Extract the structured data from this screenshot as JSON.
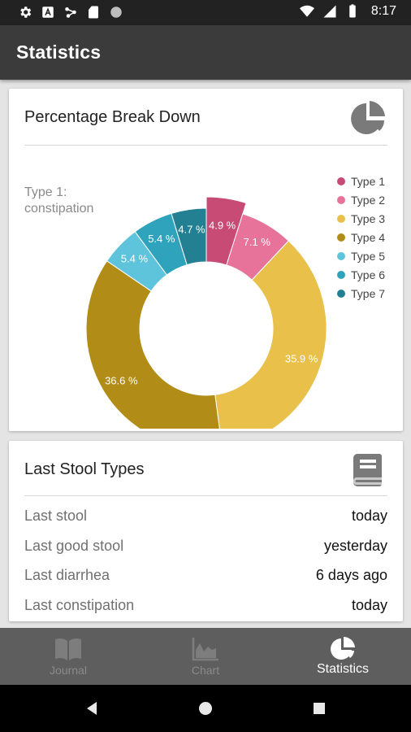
{
  "status_bar": {
    "time": "8:17",
    "left_icons": [
      "gear-icon",
      "notification-icon",
      "share-icon",
      "sd-card-icon",
      "record-icon"
    ],
    "right_icons": [
      "wifi-icon",
      "signal-icon",
      "battery-icon"
    ]
  },
  "app_bar": {
    "title": "Statistics"
  },
  "breakdown_card": {
    "title": "Percentage Break Down",
    "icon": "pie-chart-icon",
    "center_label_line1": "Type 1:",
    "center_label_line2": "constipation"
  },
  "chart_data": {
    "type": "pie",
    "categories": [
      "Type 1",
      "Type 2",
      "Type 3",
      "Type 4",
      "Type 5",
      "Type 6",
      "Type 7"
    ],
    "values": [
      4.9,
      7.1,
      35.9,
      36.6,
      5.4,
      5.4,
      4.7
    ],
    "labels": [
      "4.9 %",
      "7.1 %",
      "35.9 %",
      "36.6 %",
      "5.4 %",
      "5.4 %",
      "4.7 %"
    ],
    "colors": [
      "#c84b76",
      "#e8739a",
      "#e8c04a",
      "#b18d18",
      "#5ec4dc",
      "#2fa3bb",
      "#238093"
    ],
    "highlighted": "Type 1",
    "donut": true,
    "legend_position": "right"
  },
  "stool_card": {
    "title": "Last Stool Types",
    "icon": "book-icon",
    "rows": [
      {
        "label": "Last stool",
        "value": "today"
      },
      {
        "label": "Last good stool",
        "value": "yesterday"
      },
      {
        "label": "Last diarrhea",
        "value": "6 days ago"
      },
      {
        "label": "Last constipation",
        "value": "today"
      }
    ]
  },
  "bottom_nav": {
    "items": [
      {
        "label": "Journal",
        "icon": "book-open-icon",
        "active": false
      },
      {
        "label": "Chart",
        "icon": "area-chart-icon",
        "active": false
      },
      {
        "label": "Statistics",
        "icon": "pie-chart-icon",
        "active": true
      }
    ]
  },
  "system_nav": {
    "icons": [
      "back-icon",
      "home-icon",
      "recents-icon"
    ]
  }
}
